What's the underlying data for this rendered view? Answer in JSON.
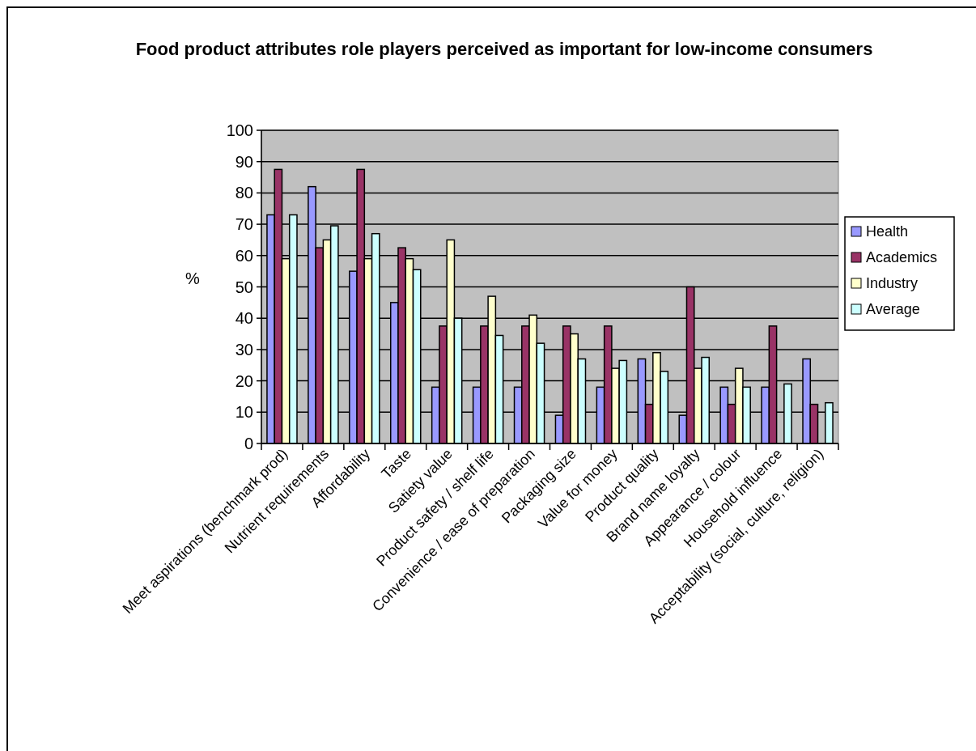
{
  "chart_data": {
    "type": "bar",
    "title": "Food product attributes role players perceived as important for low-income consumers",
    "ylabel": "%",
    "categories": [
      "Meet aspirations (benchmark prod)",
      "Nutrient requirements",
      "Affordability",
      "Taste",
      "Satiety value",
      "Product safety / shelf life",
      "Convenience / ease of preparation",
      "Packaging size",
      "Value for money",
      "Product quality",
      "Brand name loyalty",
      "Appearance / colour",
      "Household influence",
      "Acceptability (social, culture, religion)"
    ],
    "series": [
      {
        "name": "Health",
        "color": "#9999ff",
        "values": [
          73,
          82,
          55,
          45,
          18,
          18,
          18,
          9,
          18,
          27,
          9,
          18,
          18,
          27
        ]
      },
      {
        "name": "Academics",
        "color": "#993366",
        "values": [
          87.5,
          62.5,
          87.5,
          62.5,
          37.5,
          37.5,
          37.5,
          37.5,
          37.5,
          12.5,
          50,
          12.5,
          37.5,
          12.5
        ]
      },
      {
        "name": "Industry",
        "color": "#ffffcc",
        "values": [
          59,
          65,
          59,
          59,
          65,
          47,
          41,
          35,
          24,
          29,
          24,
          24,
          0,
          0
        ]
      },
      {
        "name": "Average",
        "color": "#ccffff",
        "values": [
          73,
          69.5,
          67,
          55.5,
          40,
          34.5,
          32,
          27,
          26.5,
          23,
          27.5,
          18,
          19,
          13
        ]
      }
    ],
    "ylim": [
      0,
      100
    ],
    "yticks": [
      0,
      10,
      20,
      30,
      40,
      50,
      60,
      70,
      80,
      90,
      100
    ],
    "grid": "y",
    "legend": "right"
  }
}
